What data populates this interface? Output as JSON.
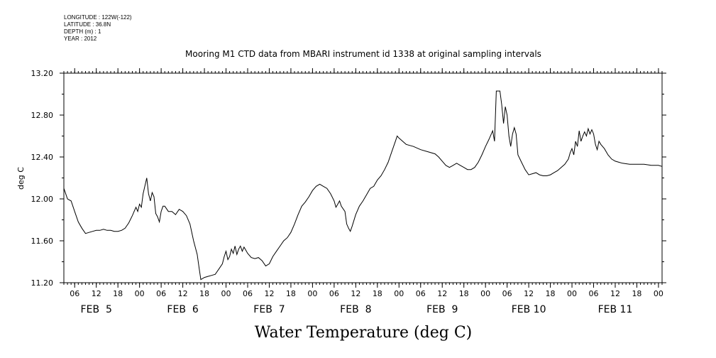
{
  "metadata": {
    "longitude": "LONGITUDE : 122W(-122)",
    "latitude": "LATITUDE : 36.8N",
    "depth": "DEPTH (m) : 1",
    "year": "YEAR : 2012"
  },
  "chart_data": {
    "type": "line",
    "title": "Mooring M1 CTD data from MBARI instrument id 1338 at original sampling intervals",
    "xlabel": "Water Temperature (deg C)",
    "ylabel": "deg C",
    "ylim": [
      11.2,
      13.2
    ],
    "xlim": [
      "2012-02-05 03:00",
      "2012-02-12 01:00"
    ],
    "yticks": [
      "11.20",
      "11.60",
      "12.00",
      "12.40",
      "12.80",
      "13.20"
    ],
    "xticks": [
      {
        "label": "06",
        "t": "2012-02-05 06:00"
      },
      {
        "label": "12",
        "t": "2012-02-05 12:00"
      },
      {
        "label": "18",
        "t": "2012-02-05 18:00"
      },
      {
        "label": "00",
        "t": "2012-02-06 00:00"
      },
      {
        "label": "06",
        "t": "2012-02-06 06:00"
      },
      {
        "label": "12",
        "t": "2012-02-06 12:00"
      },
      {
        "label": "18",
        "t": "2012-02-06 18:00"
      },
      {
        "label": "00",
        "t": "2012-02-07 00:00"
      },
      {
        "label": "06",
        "t": "2012-02-07 06:00"
      },
      {
        "label": "12",
        "t": "2012-02-07 12:00"
      },
      {
        "label": "18",
        "t": "2012-02-07 18:00"
      },
      {
        "label": "00",
        "t": "2012-02-08 00:00"
      },
      {
        "label": "06",
        "t": "2012-02-08 06:00"
      },
      {
        "label": "12",
        "t": "2012-02-08 12:00"
      },
      {
        "label": "18",
        "t": "2012-02-08 18:00"
      },
      {
        "label": "00",
        "t": "2012-02-09 00:00"
      },
      {
        "label": "06",
        "t": "2012-02-09 06:00"
      },
      {
        "label": "12",
        "t": "2012-02-09 12:00"
      },
      {
        "label": "18",
        "t": "2012-02-09 18:00"
      },
      {
        "label": "00",
        "t": "2012-02-10 00:00"
      },
      {
        "label": "06",
        "t": "2012-02-10 06:00"
      },
      {
        "label": "12",
        "t": "2012-02-10 12:00"
      },
      {
        "label": "18",
        "t": "2012-02-10 18:00"
      },
      {
        "label": "00",
        "t": "2012-02-11 00:00"
      },
      {
        "label": "06",
        "t": "2012-02-11 06:00"
      },
      {
        "label": "12",
        "t": "2012-02-11 12:00"
      },
      {
        "label": "18",
        "t": "2012-02-11 18:00"
      },
      {
        "label": "00",
        "t": "2012-02-12 00:00"
      }
    ],
    "date_labels": [
      {
        "label": "FEB  5",
        "t": "2012-02-05 12:00"
      },
      {
        "label": "FEB  6",
        "t": "2012-02-06 12:00"
      },
      {
        "label": "FEB  7",
        "t": "2012-02-07 12:00"
      },
      {
        "label": "FEB  8",
        "t": "2012-02-08 12:00"
      },
      {
        "label": "FEB  9",
        "t": "2012-02-09 12:00"
      },
      {
        "label": "FEB 10",
        "t": "2012-02-10 12:00"
      },
      {
        "label": "FEB 11",
        "t": "2012-02-11 12:00"
      }
    ],
    "grid": false,
    "series": [
      {
        "points": [
          [
            "2012-02-05 03:00",
            12.1
          ],
          [
            "2012-02-05 04:00",
            12.0
          ],
          [
            "2012-02-05 05:00",
            11.98
          ],
          [
            "2012-02-05 06:00",
            11.88
          ],
          [
            "2012-02-05 07:00",
            11.78
          ],
          [
            "2012-02-05 08:00",
            11.72
          ],
          [
            "2012-02-05 09:00",
            11.67
          ],
          [
            "2012-02-05 10:00",
            11.68
          ],
          [
            "2012-02-05 11:00",
            11.69
          ],
          [
            "2012-02-05 12:00",
            11.7
          ],
          [
            "2012-02-05 13:00",
            11.7
          ],
          [
            "2012-02-05 14:00",
            11.71
          ],
          [
            "2012-02-05 15:00",
            11.7
          ],
          [
            "2012-02-05 16:00",
            11.7
          ],
          [
            "2012-02-05 17:00",
            11.69
          ],
          [
            "2012-02-05 18:00",
            11.69
          ],
          [
            "2012-02-05 19:00",
            11.7
          ],
          [
            "2012-02-05 20:00",
            11.72
          ],
          [
            "2012-02-05 21:00",
            11.77
          ],
          [
            "2012-02-05 22:00",
            11.84
          ],
          [
            "2012-02-05 22:30",
            11.88
          ],
          [
            "2012-02-05 23:00",
            11.92
          ],
          [
            "2012-02-05 23:30",
            11.88
          ],
          [
            "2012-02-06 00:00",
            11.95
          ],
          [
            "2012-02-06 00:30",
            11.92
          ],
          [
            "2012-02-06 01:00",
            12.05
          ],
          [
            "2012-02-06 02:00",
            12.2
          ],
          [
            "2012-02-06 02:30",
            12.05
          ],
          [
            "2012-02-06 03:00",
            11.98
          ],
          [
            "2012-02-06 03:30",
            12.06
          ],
          [
            "2012-02-06 04:00",
            12.02
          ],
          [
            "2012-02-06 04:30",
            11.86
          ],
          [
            "2012-02-06 05:00",
            11.83
          ],
          [
            "2012-02-06 05:30",
            11.78
          ],
          [
            "2012-02-06 06:00",
            11.88
          ],
          [
            "2012-02-06 06:30",
            11.93
          ],
          [
            "2012-02-06 07:00",
            11.93
          ],
          [
            "2012-02-06 08:00",
            11.88
          ],
          [
            "2012-02-06 09:00",
            11.88
          ],
          [
            "2012-02-06 10:00",
            11.85
          ],
          [
            "2012-02-06 11:00",
            11.9
          ],
          [
            "2012-02-06 12:00",
            11.88
          ],
          [
            "2012-02-06 13:00",
            11.84
          ],
          [
            "2012-02-06 14:00",
            11.76
          ],
          [
            "2012-02-06 15:00",
            11.6
          ],
          [
            "2012-02-06 16:00",
            11.47
          ],
          [
            "2012-02-06 16:30",
            11.35
          ],
          [
            "2012-02-06 17:00",
            11.23
          ],
          [
            "2012-02-06 18:00",
            11.25
          ],
          [
            "2012-02-06 19:00",
            11.26
          ],
          [
            "2012-02-06 20:00",
            11.27
          ],
          [
            "2012-02-06 21:00",
            11.28
          ],
          [
            "2012-02-06 22:00",
            11.33
          ],
          [
            "2012-02-06 23:00",
            11.38
          ],
          [
            "2012-02-06 23:30",
            11.45
          ],
          [
            "2012-02-07 00:00",
            11.5
          ],
          [
            "2012-02-07 00:30",
            11.42
          ],
          [
            "2012-02-07 01:00",
            11.45
          ],
          [
            "2012-02-07 01:30",
            11.52
          ],
          [
            "2012-02-07 02:00",
            11.48
          ],
          [
            "2012-02-07 02:30",
            11.55
          ],
          [
            "2012-02-07 03:00",
            11.47
          ],
          [
            "2012-02-07 03:30",
            11.52
          ],
          [
            "2012-02-07 04:00",
            11.55
          ],
          [
            "2012-02-07 04:30",
            11.5
          ],
          [
            "2012-02-07 05:00",
            11.54
          ],
          [
            "2012-02-07 06:00",
            11.48
          ],
          [
            "2012-02-07 07:00",
            11.44
          ],
          [
            "2012-02-07 08:00",
            11.43
          ],
          [
            "2012-02-07 09:00",
            11.44
          ],
          [
            "2012-02-07 10:00",
            11.41
          ],
          [
            "2012-02-07 11:00",
            11.36
          ],
          [
            "2012-02-07 12:00",
            11.38
          ],
          [
            "2012-02-07 13:00",
            11.45
          ],
          [
            "2012-02-07 14:00",
            11.5
          ],
          [
            "2012-02-07 15:00",
            11.55
          ],
          [
            "2012-02-07 16:00",
            11.6
          ],
          [
            "2012-02-07 17:00",
            11.63
          ],
          [
            "2012-02-07 18:00",
            11.68
          ],
          [
            "2012-02-07 19:00",
            11.76
          ],
          [
            "2012-02-07 20:00",
            11.85
          ],
          [
            "2012-02-07 21:00",
            11.93
          ],
          [
            "2012-02-07 22:00",
            11.97
          ],
          [
            "2012-02-07 23:00",
            12.02
          ],
          [
            "2012-02-08 00:00",
            12.08
          ],
          [
            "2012-02-08 01:00",
            12.12
          ],
          [
            "2012-02-08 02:00",
            12.14
          ],
          [
            "2012-02-08 03:00",
            12.12
          ],
          [
            "2012-02-08 04:00",
            12.1
          ],
          [
            "2012-02-08 05:00",
            12.05
          ],
          [
            "2012-02-08 06:00",
            11.98
          ],
          [
            "2012-02-08 06:30",
            11.92
          ],
          [
            "2012-02-08 07:00",
            11.95
          ],
          [
            "2012-02-08 07:30",
            11.98
          ],
          [
            "2012-02-08 08:00",
            11.93
          ],
          [
            "2012-02-08 09:00",
            11.88
          ],
          [
            "2012-02-08 09:30",
            11.76
          ],
          [
            "2012-02-08 10:00",
            11.72
          ],
          [
            "2012-02-08 10:30",
            11.69
          ],
          [
            "2012-02-08 11:00",
            11.74
          ],
          [
            "2012-02-08 12:00",
            11.85
          ],
          [
            "2012-02-08 13:00",
            11.93
          ],
          [
            "2012-02-08 14:00",
            11.98
          ],
          [
            "2012-02-08 15:00",
            12.04
          ],
          [
            "2012-02-08 16:00",
            12.1
          ],
          [
            "2012-02-08 17:00",
            12.12
          ],
          [
            "2012-02-08 18:00",
            12.18
          ],
          [
            "2012-02-08 19:00",
            12.22
          ],
          [
            "2012-02-08 20:00",
            12.28
          ],
          [
            "2012-02-08 21:00",
            12.35
          ],
          [
            "2012-02-08 22:00",
            12.45
          ],
          [
            "2012-02-08 23:00",
            12.55
          ],
          [
            "2012-02-08 23:30",
            12.6
          ],
          [
            "2012-02-09 00:00",
            12.58
          ],
          [
            "2012-02-09 01:00",
            12.55
          ],
          [
            "2012-02-09 02:00",
            12.52
          ],
          [
            "2012-02-09 04:00",
            12.5
          ],
          [
            "2012-02-09 06:00",
            12.47
          ],
          [
            "2012-02-09 08:00",
            12.45
          ],
          [
            "2012-02-09 10:00",
            12.43
          ],
          [
            "2012-02-09 11:00",
            12.4
          ],
          [
            "2012-02-09 12:00",
            12.36
          ],
          [
            "2012-02-09 13:00",
            12.32
          ],
          [
            "2012-02-09 14:00",
            12.3
          ],
          [
            "2012-02-09 15:00",
            12.32
          ],
          [
            "2012-02-09 16:00",
            12.34
          ],
          [
            "2012-02-09 17:00",
            12.32
          ],
          [
            "2012-02-09 18:00",
            12.3
          ],
          [
            "2012-02-09 19:00",
            12.28
          ],
          [
            "2012-02-09 20:00",
            12.28
          ],
          [
            "2012-02-09 21:00",
            12.3
          ],
          [
            "2012-02-09 22:00",
            12.35
          ],
          [
            "2012-02-09 23:00",
            12.42
          ],
          [
            "2012-02-10 00:00",
            12.5
          ],
          [
            "2012-02-10 01:00",
            12.57
          ],
          [
            "2012-02-10 02:00",
            12.65
          ],
          [
            "2012-02-10 02:30",
            12.55
          ],
          [
            "2012-02-10 03:00",
            13.03
          ],
          [
            "2012-02-10 04:00",
            13.03
          ],
          [
            "2012-02-10 04:30",
            12.9
          ],
          [
            "2012-02-10 05:00",
            12.72
          ],
          [
            "2012-02-10 05:30",
            12.88
          ],
          [
            "2012-02-10 06:00",
            12.8
          ],
          [
            "2012-02-10 06:30",
            12.6
          ],
          [
            "2012-02-10 07:00",
            12.5
          ],
          [
            "2012-02-10 07:30",
            12.62
          ],
          [
            "2012-02-10 08:00",
            12.68
          ],
          [
            "2012-02-10 08:30",
            12.62
          ],
          [
            "2012-02-10 09:00",
            12.42
          ],
          [
            "2012-02-10 10:00",
            12.35
          ],
          [
            "2012-02-10 11:00",
            12.28
          ],
          [
            "2012-02-10 12:00",
            12.23
          ],
          [
            "2012-02-10 13:00",
            12.24
          ],
          [
            "2012-02-10 14:00",
            12.25
          ],
          [
            "2012-02-10 15:00",
            12.23
          ],
          [
            "2012-02-10 16:00",
            12.22
          ],
          [
            "2012-02-10 17:00",
            12.22
          ],
          [
            "2012-02-10 18:00",
            12.23
          ],
          [
            "2012-02-10 19:00",
            12.25
          ],
          [
            "2012-02-10 20:00",
            12.27
          ],
          [
            "2012-02-10 21:00",
            12.3
          ],
          [
            "2012-02-10 22:00",
            12.33
          ],
          [
            "2012-02-10 23:00",
            12.38
          ],
          [
            "2012-02-10 23:30",
            12.44
          ],
          [
            "2012-02-11 00:00",
            12.48
          ],
          [
            "2012-02-11 00:30",
            12.42
          ],
          [
            "2012-02-11 01:00",
            12.55
          ],
          [
            "2012-02-11 01:30",
            12.5
          ],
          [
            "2012-02-11 02:00",
            12.65
          ],
          [
            "2012-02-11 02:30",
            12.55
          ],
          [
            "2012-02-11 03:00",
            12.6
          ],
          [
            "2012-02-11 03:30",
            12.64
          ],
          [
            "2012-02-11 04:00",
            12.6
          ],
          [
            "2012-02-11 04:30",
            12.67
          ],
          [
            "2012-02-11 05:00",
            12.62
          ],
          [
            "2012-02-11 05:30",
            12.66
          ],
          [
            "2012-02-11 06:00",
            12.62
          ],
          [
            "2012-02-11 06:30",
            12.52
          ],
          [
            "2012-02-11 07:00",
            12.47
          ],
          [
            "2012-02-11 07:30",
            12.55
          ],
          [
            "2012-02-11 08:00",
            12.52
          ],
          [
            "2012-02-11 09:00",
            12.48
          ],
          [
            "2012-02-11 10:00",
            12.42
          ],
          [
            "2012-02-11 11:00",
            12.38
          ],
          [
            "2012-02-11 12:00",
            12.36
          ],
          [
            "2012-02-11 13:00",
            12.35
          ],
          [
            "2012-02-11 14:00",
            12.34
          ],
          [
            "2012-02-11 16:00",
            12.33
          ],
          [
            "2012-02-11 18:00",
            12.33
          ],
          [
            "2012-02-11 20:00",
            12.33
          ],
          [
            "2012-02-11 22:00",
            12.32
          ],
          [
            "2012-02-12 00:00",
            12.32
          ],
          [
            "2012-02-12 01:00",
            12.31
          ]
        ]
      }
    ]
  }
}
